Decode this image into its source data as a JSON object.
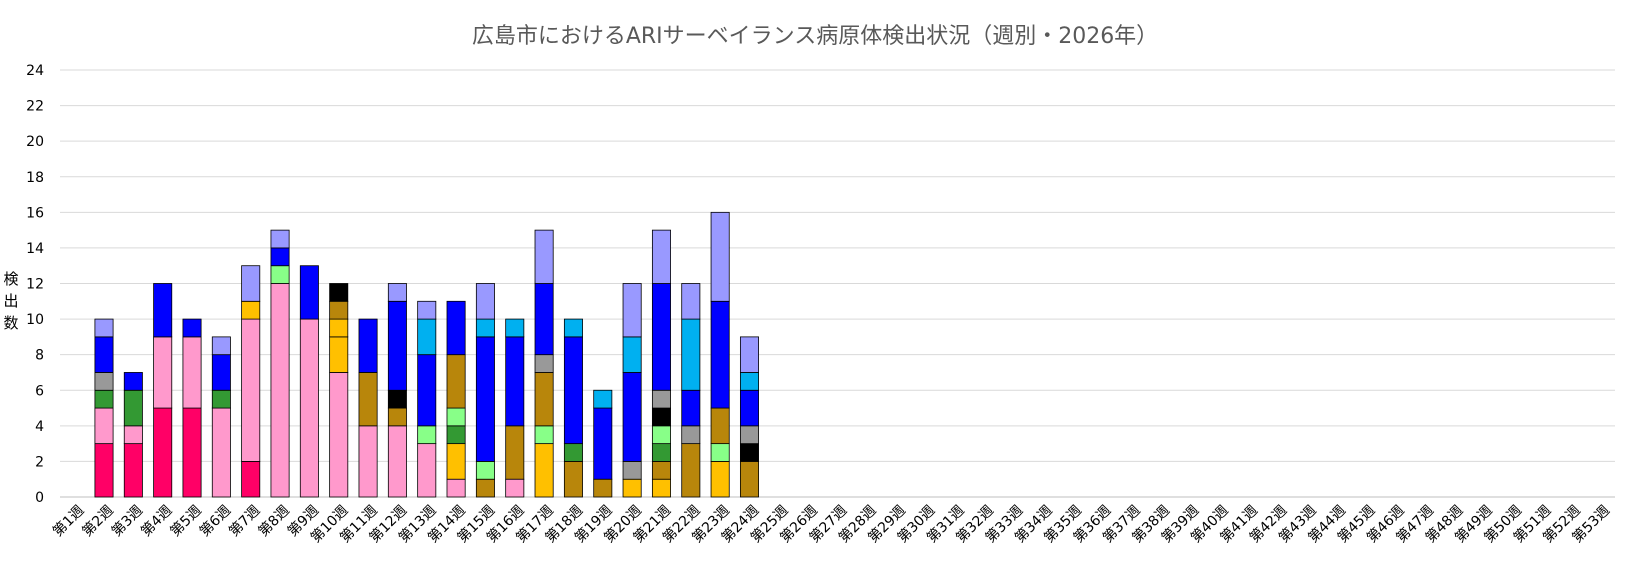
{
  "chart_data": {
    "type": "bar",
    "stacked": true,
    "title": "広島市におけるARIサーベイランス病原体検出状況（週別・2026年）",
    "ylabel": "検出数",
    "xlabel": "",
    "ylim": [
      0,
      24
    ],
    "ytick_step": 2,
    "grid": true,
    "categories": [
      "第1週",
      "第2週",
      "第3週",
      "第4週",
      "第5週",
      "第6週",
      "第7週",
      "第8週",
      "第9週",
      "第10週",
      "第11週",
      "第12週",
      "第13週",
      "第14週",
      "第15週",
      "第16週",
      "第17週",
      "第18週",
      "第19週",
      "第20週",
      "第21週",
      "第22週",
      "第23週",
      "第24週",
      "第25週",
      "第26週",
      "第27週",
      "第28週",
      "第29週",
      "第30週",
      "第31週",
      "第32週",
      "第33週",
      "第34週",
      "第35週",
      "第36週",
      "第37週",
      "第38週",
      "第39週",
      "第40週",
      "第41週",
      "第42週",
      "第43週",
      "第44週",
      "第45週",
      "第46週",
      "第47週",
      "第48週",
      "第49週",
      "第50週",
      "第51週",
      "第52週",
      "第53週"
    ],
    "series": [
      {
        "color": "#FF0066",
        "values": [
          0,
          3,
          3,
          5,
          5,
          0,
          2,
          0,
          0,
          0,
          0,
          0,
          0,
          0,
          0,
          0,
          0,
          0,
          0,
          0,
          0,
          0,
          0,
          0,
          0,
          0,
          0,
          0,
          0,
          0,
          0,
          0,
          0,
          0,
          0,
          0,
          0,
          0,
          0,
          0,
          0,
          0,
          0,
          0,
          0,
          0,
          0,
          0,
          0,
          0,
          0,
          0,
          0
        ]
      },
      {
        "color": "#FF99CC",
        "values": [
          0,
          2,
          1,
          4,
          4,
          5,
          8,
          12,
          10,
          7,
          4,
          4,
          3,
          1,
          0,
          1,
          0,
          0,
          0,
          0,
          0,
          0,
          0,
          0,
          0,
          0,
          0,
          0,
          0,
          0,
          0,
          0,
          0,
          0,
          0,
          0,
          0,
          0,
          0,
          0,
          0,
          0,
          0,
          0,
          0,
          0,
          0,
          0,
          0,
          0,
          0,
          0,
          0
        ]
      },
      {
        "color": "#BF9000",
        "values": [
          0,
          0,
          0,
          0,
          0,
          0,
          0,
          0,
          0,
          0,
          0,
          0,
          0,
          0,
          0,
          0,
          0,
          0,
          0,
          0,
          0,
          0,
          0,
          0,
          0,
          0,
          0,
          0,
          0,
          0,
          0,
          0,
          0,
          0,
          0,
          0,
          0,
          0,
          0,
          0,
          0,
          0,
          0,
          0,
          0,
          0,
          0,
          0,
          0,
          0,
          0,
          0,
          0
        ]
      },
      {
        "color": "#FFC000",
        "values": [
          0,
          0,
          0,
          0,
          0,
          0,
          0,
          0,
          0,
          2,
          0,
          0,
          0,
          2,
          0,
          0,
          3,
          0,
          0,
          1,
          1,
          0,
          2,
          0,
          0,
          0,
          0,
          0,
          0,
          0,
          0,
          0,
          0,
          0,
          0,
          0,
          0,
          0,
          0,
          0,
          0,
          0,
          0,
          0,
          0,
          0,
          0,
          0,
          0,
          0,
          0,
          0,
          0
        ]
      },
      {
        "color": "#B8860B",
        "values": [
          0,
          0,
          0,
          0,
          0,
          0,
          0,
          0,
          0,
          0,
          3,
          1,
          0,
          0,
          1,
          3,
          0,
          2,
          1,
          0,
          1,
          3,
          0,
          2,
          0,
          0,
          0,
          0,
          0,
          0,
          0,
          0,
          0,
          0,
          0,
          0,
          0,
          0,
          0,
          0,
          0,
          0,
          0,
          0,
          0,
          0,
          0,
          0,
          0,
          0,
          0,
          0,
          0
        ]
      },
      {
        "color": "#339933",
        "values": [
          0,
          1,
          2,
          0,
          0,
          1,
          0,
          0,
          0,
          0,
          0,
          0,
          0,
          1,
          0,
          0,
          0,
          1,
          0,
          0,
          1,
          0,
          0,
          0,
          0,
          0,
          0,
          0,
          0,
          0,
          0,
          0,
          0,
          0,
          0,
          0,
          0,
          0,
          0,
          0,
          0,
          0,
          0,
          0,
          0,
          0,
          0,
          0,
          0,
          0,
          0,
          0,
          0
        ]
      },
      {
        "color": "#88FF88",
        "values": [
          0,
          0,
          0,
          0,
          0,
          0,
          0,
          1,
          0,
          0,
          0,
          0,
          1,
          1,
          1,
          0,
          1,
          0,
          0,
          0,
          1,
          0,
          1,
          0,
          0,
          0,
          0,
          0,
          0,
          0,
          0,
          0,
          0,
          0,
          0,
          0,
          0,
          0,
          0,
          0,
          0,
          0,
          0,
          0,
          0,
          0,
          0,
          0,
          0,
          0,
          0,
          0,
          0
        ]
      },
      {
        "color": "#FFC000",
        "values": [
          0,
          0,
          0,
          0,
          0,
          0,
          1,
          0,
          0,
          1,
          0,
          0,
          0,
          0,
          0,
          0,
          0,
          0,
          0,
          0,
          0,
          0,
          0,
          0,
          0,
          0,
          0,
          0,
          0,
          0,
          0,
          0,
          0,
          0,
          0,
          0,
          0,
          0,
          0,
          0,
          0,
          0,
          0,
          0,
          0,
          0,
          0,
          0,
          0,
          0,
          0,
          0,
          0
        ]
      },
      {
        "color": "#B8860B",
        "values": [
          0,
          0,
          0,
          0,
          0,
          0,
          0,
          0,
          0,
          1,
          0,
          0,
          0,
          3,
          0,
          0,
          3,
          0,
          0,
          0,
          0,
          0,
          2,
          0,
          0,
          0,
          0,
          0,
          0,
          0,
          0,
          0,
          0,
          0,
          0,
          0,
          0,
          0,
          0,
          0,
          0,
          0,
          0,
          0,
          0,
          0,
          0,
          0,
          0,
          0,
          0,
          0,
          0
        ]
      },
      {
        "color": "#000000",
        "values": [
          0,
          0,
          0,
          0,
          0,
          0,
          0,
          0,
          0,
          1,
          0,
          1,
          0,
          0,
          0,
          0,
          0,
          0,
          0,
          0,
          1,
          0,
          0,
          1,
          0,
          0,
          0,
          0,
          0,
          0,
          0,
          0,
          0,
          0,
          0,
          0,
          0,
          0,
          0,
          0,
          0,
          0,
          0,
          0,
          0,
          0,
          0,
          0,
          0,
          0,
          0,
          0,
          0
        ]
      },
      {
        "color": "#999999",
        "values": [
          0,
          1,
          0,
          0,
          0,
          0,
          0,
          0,
          0,
          0,
          0,
          0,
          0,
          0,
          0,
          0,
          1,
          0,
          0,
          1,
          1,
          1,
          0,
          1,
          0,
          0,
          0,
          0,
          0,
          0,
          0,
          0,
          0,
          0,
          0,
          0,
          0,
          0,
          0,
          0,
          0,
          0,
          0,
          0,
          0,
          0,
          0,
          0,
          0,
          0,
          0,
          0,
          0
        ]
      },
      {
        "color": "#0000FF",
        "values": [
          0,
          2,
          1,
          3,
          1,
          2,
          0,
          1,
          3,
          0,
          3,
          5,
          4,
          3,
          7,
          5,
          4,
          6,
          4,
          5,
          6,
          2,
          6,
          2,
          0,
          0,
          0,
          0,
          0,
          0,
          0,
          0,
          0,
          0,
          0,
          0,
          0,
          0,
          0,
          0,
          0,
          0,
          0,
          0,
          0,
          0,
          0,
          0,
          0,
          0,
          0,
          0,
          0
        ]
      },
      {
        "color": "#00B0F0",
        "values": [
          0,
          0,
          0,
          0,
          0,
          0,
          0,
          0,
          0,
          0,
          0,
          0,
          2,
          0,
          1,
          1,
          0,
          1,
          1,
          2,
          0,
          4,
          0,
          1,
          0,
          0,
          0,
          0,
          0,
          0,
          0,
          0,
          0,
          0,
          0,
          0,
          0,
          0,
          0,
          0,
          0,
          0,
          0,
          0,
          0,
          0,
          0,
          0,
          0,
          0,
          0,
          0,
          0
        ]
      },
      {
        "color": "#9999FF",
        "values": [
          0,
          1,
          0,
          0,
          0,
          1,
          2,
          1,
          0,
          0,
          0,
          1,
          1,
          0,
          2,
          0,
          3,
          0,
          0,
          3,
          3,
          2,
          5,
          2,
          0,
          0,
          0,
          0,
          0,
          0,
          0,
          0,
          0,
          0,
          0,
          0,
          0,
          0,
          0,
          0,
          0,
          0,
          0,
          0,
          0,
          0,
          0,
          0,
          0,
          0,
          0,
          0,
          0
        ]
      }
    ]
  }
}
